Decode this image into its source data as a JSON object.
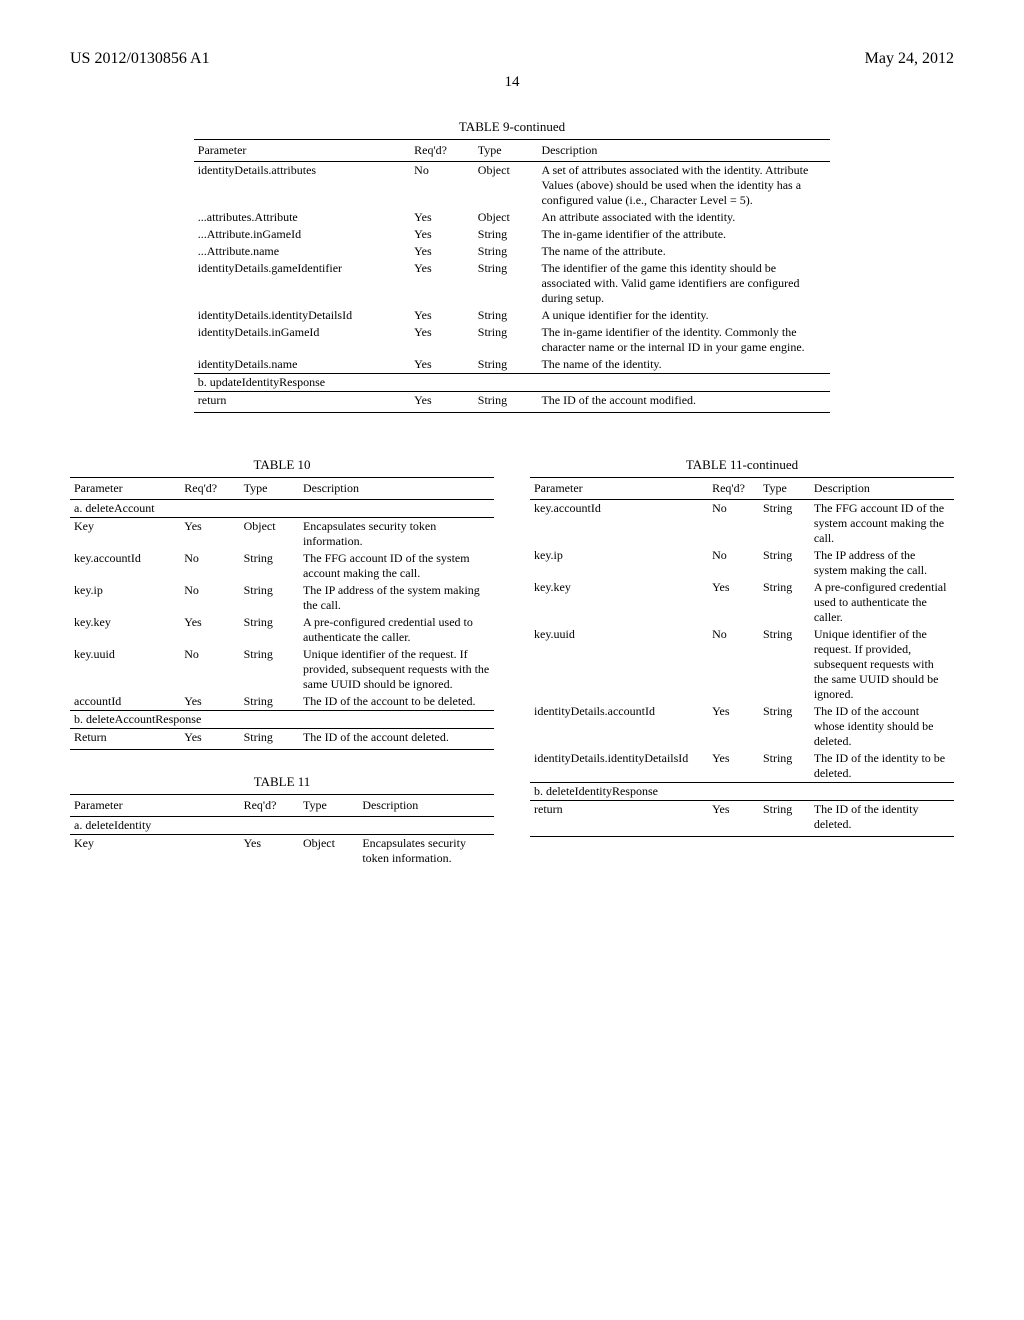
{
  "header": {
    "pub_number": "US 2012/0130856 A1",
    "pub_date": "May 24, 2012",
    "page_number": "14"
  },
  "table9": {
    "title": "TABLE 9-continued",
    "cols": [
      "Parameter",
      "Req'd?",
      "Type",
      "Description"
    ],
    "rows": [
      [
        "identityDetails.attributes",
        "No",
        "Object",
        "A set of attributes associated with the identity.\nAttribute Values (above) should be used when the identity has a configured value (i.e., Character Level = 5)."
      ],
      [
        "...attributes.Attribute",
        "Yes",
        "Object",
        "An attribute associated with the identity."
      ],
      [
        "...Attribute.inGameId",
        "Yes",
        "String",
        "The in-game identifier of the attribute."
      ],
      [
        "...Attribute.name",
        "Yes",
        "String",
        "The name of the attribute."
      ],
      [
        "identityDetails.gameIdentifier",
        "Yes",
        "String",
        "The identifier of the game this identity should be associated with. Valid game identifiers are configured during setup."
      ],
      [
        "identityDetails.identityDetailsId",
        "Yes",
        "String",
        "A unique identifier for the identity."
      ],
      [
        "identityDetails.inGameId",
        "Yes",
        "String",
        "The in-game identifier of the identity. Commonly the character name or the internal ID in your game engine."
      ],
      [
        "identityDetails.name",
        "Yes",
        "String",
        "The name of the identity."
      ]
    ],
    "section_b": "b. updateIdentityResponse",
    "return_row": [
      "return",
      "Yes",
      "String",
      "The ID of the account modified."
    ]
  },
  "table10": {
    "title": "TABLE 10",
    "cols": [
      "Parameter",
      "Req'd?",
      "Type",
      "Description"
    ],
    "section_a": "a. deleteAccount",
    "rows_a": [
      [
        "Key",
        "Yes",
        "Object",
        "Encapsulates security token information."
      ],
      [
        "key.accountId",
        "No",
        "String",
        "The FFG account ID of the system account making the call."
      ],
      [
        "key.ip",
        "No",
        "String",
        "The IP address of the system making the call."
      ],
      [
        "key.key",
        "Yes",
        "String",
        "A pre-configured credential used to authenticate the caller."
      ],
      [
        "key.uuid",
        "No",
        "String",
        "Unique identifier of the request. If provided, subsequent requests with the same UUID should be ignored."
      ],
      [
        "accountId",
        "Yes",
        "String",
        "The ID of the account to be deleted."
      ]
    ],
    "section_b": "b. deleteAccountResponse",
    "rows_b": [
      [
        "Return",
        "Yes",
        "String",
        "The ID of the account deleted."
      ]
    ]
  },
  "table11_left": {
    "title": "TABLE 11",
    "cols": [
      "Parameter",
      "Req'd?",
      "Type",
      "Description"
    ],
    "section_a": "a. deleteIdentity",
    "rows_a": [
      [
        "Key",
        "Yes",
        "Object",
        "Encapsulates security token information."
      ]
    ]
  },
  "table11_right": {
    "title": "TABLE 11-continued",
    "cols": [
      "Parameter",
      "Req'd?",
      "Type",
      "Description"
    ],
    "rows_a": [
      [
        "key.accountId",
        "No",
        "String",
        "The FFG account ID of the system account making the call."
      ],
      [
        "key.ip",
        "No",
        "String",
        "The IP address of the system making the call."
      ],
      [
        "key.key",
        "Yes",
        "String",
        "A pre-configured credential used to authenticate the caller."
      ],
      [
        "key.uuid",
        "No",
        "String",
        "Unique identifier of the request. If provided, subsequent requests with the same UUID should be ignored."
      ],
      [
        "identityDetails.accountId",
        "Yes",
        "String",
        "The ID of the account whose identity should be deleted."
      ],
      [
        "identityDetails.identityDetailsId",
        "Yes",
        "String",
        "The ID of the identity to be deleted."
      ]
    ],
    "section_b": "b. deleteIdentityResponse",
    "rows_b": [
      [
        "return",
        "Yes",
        "String",
        "The ID of the identity deleted."
      ]
    ]
  }
}
